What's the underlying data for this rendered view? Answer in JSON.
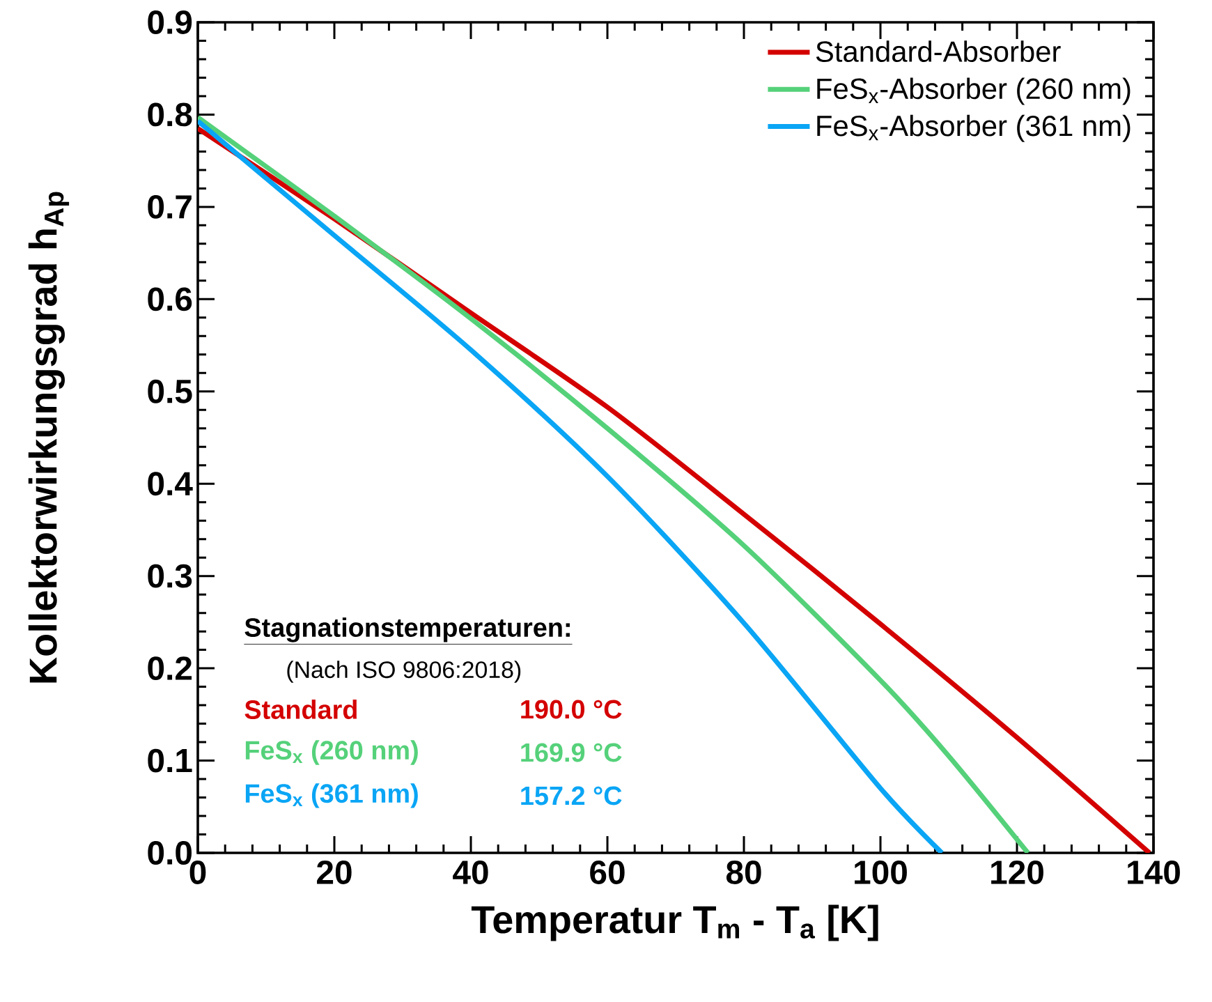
{
  "chart_data": {
    "type": "line",
    "xlabel": "Temperatur T$_{m}$ - T$_{a}$  [K]",
    "ylabel": "Kollektorwirkungsgrad h$_{Ap}$",
    "xlim": [
      0,
      140
    ],
    "ylim": [
      0,
      0.9
    ],
    "xticks": [
      0,
      20,
      40,
      60,
      80,
      100,
      120,
      140
    ],
    "yticks": [
      {
        "value": 0,
        "label": "0.0"
      },
      0.1,
      0.2,
      0.3,
      0.4,
      0.5,
      0.6,
      0.7,
      0.8,
      0.9
    ],
    "legend": "top right",
    "grid": false,
    "marker": "none",
    "line_style": "solid",
    "series": [
      {
        "name": "Standard-Absorber",
        "color": "#d40000",
        "x": [
          0,
          20,
          40,
          60,
          80,
          100,
          120,
          139.4
        ],
        "values": [
          0.785,
          0.687,
          0.585,
          0.483,
          0.367,
          0.248,
          0.125,
          0
        ]
      },
      {
        "name": "FeS$_{x}$-Absorber (260 nm)",
        "color": "#55d17a",
        "x": [
          0,
          20,
          40,
          60,
          80,
          100,
          110,
          121.6
        ],
        "values": [
          0.797,
          0.69,
          0.579,
          0.46,
          0.333,
          0.187,
          0.105,
          0
        ]
      },
      {
        "name": "FeS$_{x}$-Absorber (361 nm)",
        "color": "#0aa5f5",
        "x": [
          0,
          20,
          40,
          60,
          80,
          100,
          109
        ],
        "values": [
          0.793,
          0.669,
          0.545,
          0.408,
          0.249,
          0.07,
          0
        ]
      }
    ],
    "annotations": [
      "Stagnationstemperaturen:",
      "(Nach ISO 9806:2018)",
      "Standard",
      "190.0 °C",
      "FeS$_{x}$ (260 nm)",
      "169.9 °C",
      "FeS$_{x}$ (361 nm)",
      "157.2 °C"
    ]
  }
}
